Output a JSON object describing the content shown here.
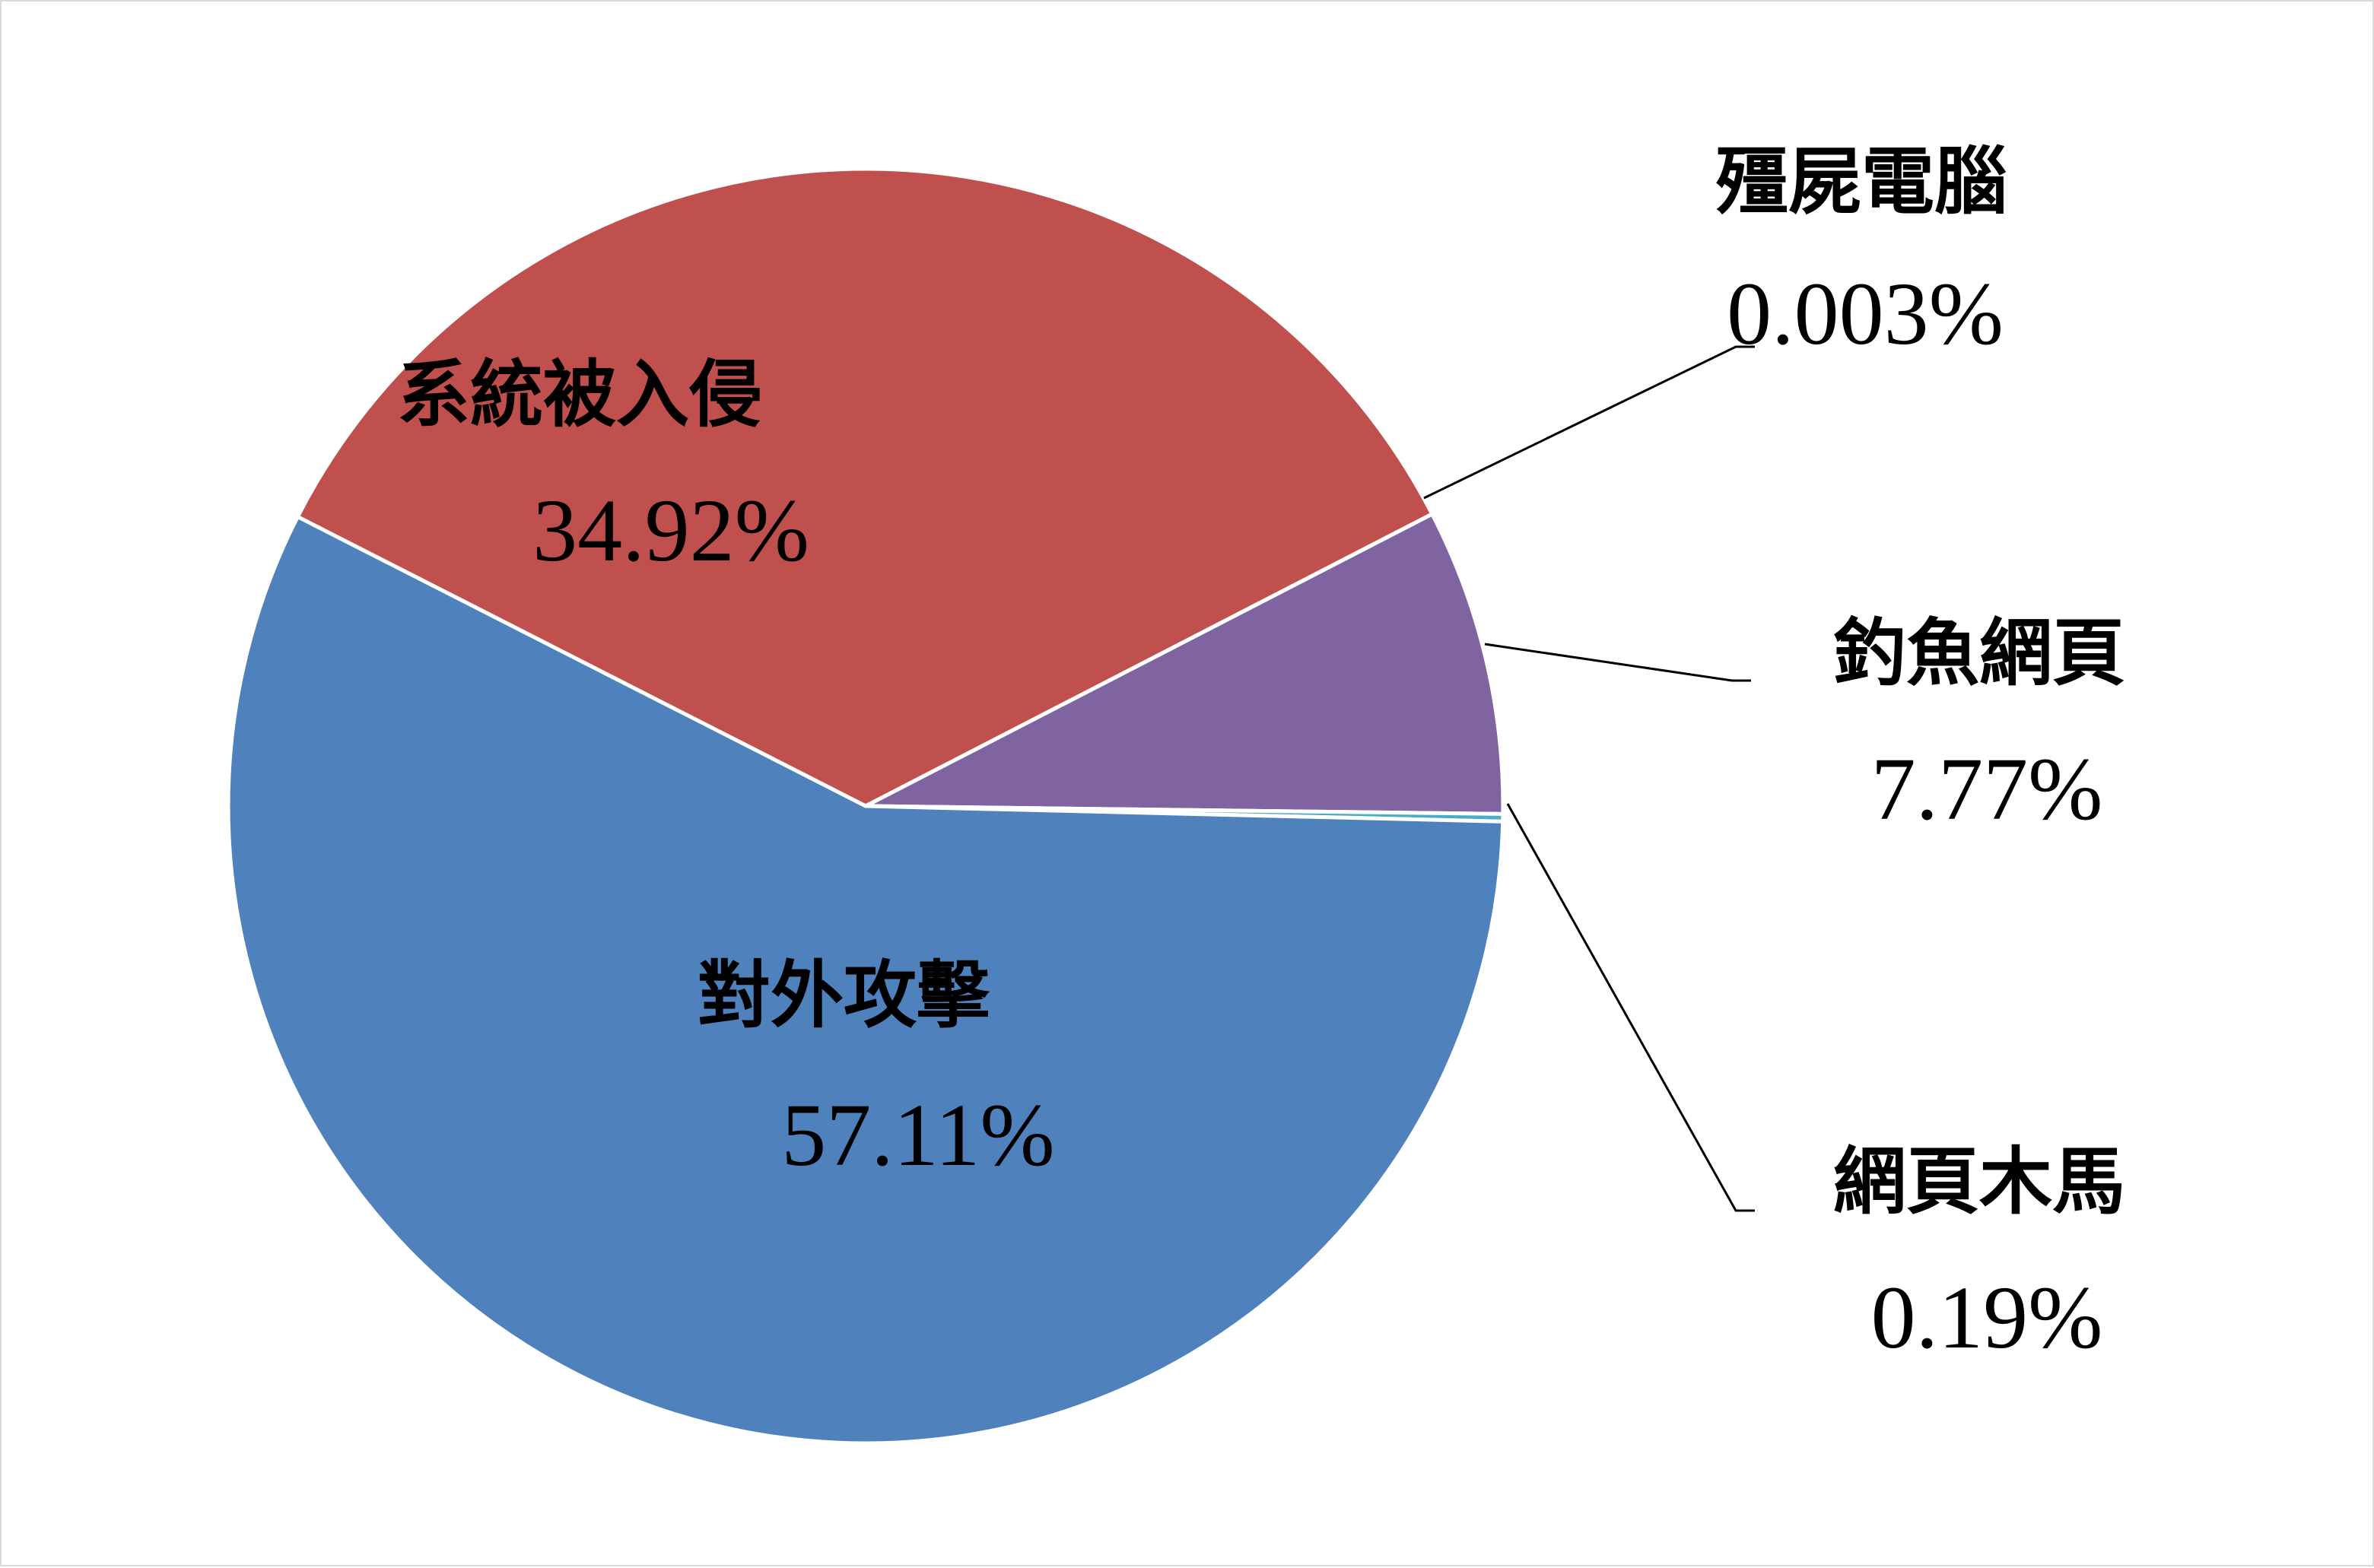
{
  "chart_data": {
    "type": "pie",
    "labels": [
      "系統被入侵",
      "殭屍電腦",
      "釣魚網頁",
      "網頁木馬",
      "對外攻擊"
    ],
    "values": [
      34.92,
      0.003,
      7.77,
      0.19,
      57.11
    ],
    "value_labels": [
      "34.92%",
      "0.003%",
      "7.77%",
      "0.19%",
      "57.11%"
    ],
    "colors": [
      "#C0504D",
      "#9BBB59",
      "#8064A2",
      "#4BACC6",
      "#4F81BD"
    ],
    "legend": "none"
  }
}
